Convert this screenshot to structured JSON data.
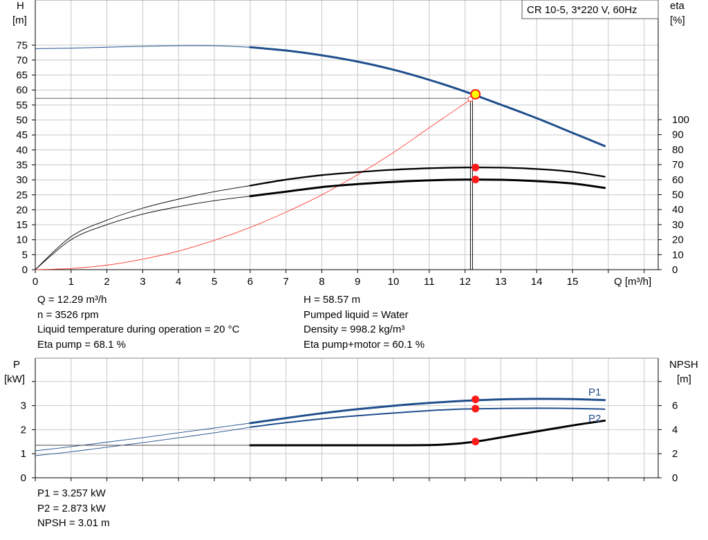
{
  "chart_data": [
    {
      "type": "line",
      "title_box": "CR 10-5, 3*220 V, 60Hz",
      "y_left_label": [
        "H",
        "[m]"
      ],
      "y_right_label": [
        "eta",
        "[%]"
      ],
      "x_label": "Q [m³/h]",
      "x_ticks": [
        0,
        1,
        2,
        3,
        4,
        5,
        6,
        7,
        8,
        9,
        10,
        11,
        12,
        13,
        14,
        15
      ],
      "y_left_ticks": [
        0,
        5,
        10,
        15,
        20,
        25,
        30,
        35,
        40,
        45,
        50,
        55,
        60,
        65,
        70,
        75
      ],
      "y_right_ticks": [
        0,
        10,
        20,
        30,
        40,
        50,
        60,
        70,
        80,
        90,
        100
      ],
      "xlim": [
        0,
        17
      ],
      "ylim_left": [
        0,
        80
      ],
      "ylim_right": [
        0,
        100
      ],
      "grid": true,
      "series": [
        {
          "role": "head",
          "axis": "left",
          "color": "#1f4e8c",
          "x": [
            0,
            1,
            2,
            3,
            4,
            5,
            6,
            7,
            8,
            9,
            10,
            11,
            12,
            13,
            14,
            15,
            15.9
          ],
          "y": [
            73.8,
            74,
            74.3,
            74.6,
            74.8,
            74.8,
            74.3,
            73.2,
            71.6,
            69.5,
            66.8,
            63.4,
            59.5,
            55.1,
            50.6,
            45.7,
            41.3
          ]
        },
        {
          "role": "eta pump",
          "axis": "right",
          "color": "#000000",
          "x": [
            0,
            1,
            2,
            3,
            4,
            5,
            6,
            7,
            8,
            9,
            10,
            11,
            12,
            13,
            14,
            15,
            15.9
          ],
          "y": [
            0,
            22,
            33,
            41,
            47,
            52,
            56,
            60,
            63,
            65,
            66.6,
            67.6,
            68.1,
            68,
            67.1,
            65.2,
            62
          ]
        },
        {
          "role": "eta pump+motor",
          "axis": "right",
          "color": "#000000",
          "x": [
            0,
            1,
            2,
            3,
            4,
            5,
            6,
            7,
            8,
            9,
            10,
            11,
            12,
            13,
            14,
            15,
            15.9
          ],
          "y": [
            0,
            20,
            30,
            37,
            42,
            46,
            49,
            52,
            55,
            57,
            58.5,
            59.5,
            60,
            59.9,
            59,
            57.4,
            54.5
          ]
        },
        {
          "role": "system curve",
          "axis": "left",
          "color": "#ff3b30",
          "x": [
            0,
            1,
            2,
            3,
            4,
            5,
            6,
            7,
            8,
            9,
            10,
            11,
            12.15
          ],
          "y": [
            0,
            0.4,
            1.5,
            3.5,
            6.2,
            9.8,
            14.1,
            19.2,
            25,
            31.7,
            39.1,
            47.4,
            56.8
          ]
        }
      ],
      "duty_point": {
        "q": 12.29,
        "h": 58.57,
        "eta_pump": 68.1,
        "eta_total": 60.1
      }
    },
    {
      "type": "line",
      "y_left_label": [
        "P",
        "[kW]"
      ],
      "y_right_label": [
        "NPSH",
        "[m]"
      ],
      "y_left_ticks": [
        0,
        1,
        2,
        3
      ],
      "y_right_ticks": [
        0,
        2,
        4,
        6
      ],
      "ylim_left": [
        0,
        4
      ],
      "ylim_right": [
        0,
        8
      ],
      "series": [
        {
          "name": "P1",
          "axis": "left",
          "color": "#1f4e8c",
          "x": [
            0,
            1,
            2,
            3,
            4,
            5,
            6,
            7,
            8,
            9,
            10,
            11,
            12,
            13,
            14,
            15,
            15.9
          ],
          "y": [
            1.12,
            1.29,
            1.48,
            1.67,
            1.87,
            2.07,
            2.27,
            2.48,
            2.68,
            2.85,
            2.99,
            3.11,
            3.2,
            3.26,
            3.28,
            3.27,
            3.23
          ]
        },
        {
          "name": "P2",
          "axis": "left",
          "color": "#1f4e8c",
          "x": [
            0,
            1,
            2,
            3,
            4,
            5,
            6,
            7,
            8,
            9,
            10,
            11,
            12,
            13,
            14,
            15,
            15.9
          ],
          "y": [
            0.92,
            1.08,
            1.27,
            1.46,
            1.66,
            1.87,
            2.1,
            2.29,
            2.45,
            2.58,
            2.69,
            2.79,
            2.86,
            2.88,
            2.89,
            2.88,
            2.85
          ]
        },
        {
          "name": "NPSH",
          "axis": "right",
          "color": "#000000",
          "x": [
            0,
            1,
            2,
            3,
            4,
            5,
            6,
            7,
            8,
            9,
            10,
            11,
            11.5,
            12,
            12.5,
            13,
            14,
            15,
            15.9
          ],
          "y": [
            2.7,
            2.7,
            2.7,
            2.7,
            2.7,
            2.7,
            2.7,
            2.7,
            2.7,
            2.7,
            2.7,
            2.72,
            2.78,
            2.9,
            3.1,
            3.35,
            3.85,
            4.35,
            4.75
          ]
        }
      ],
      "duty_point": {
        "p1": 3.257,
        "p2": 2.873,
        "npsh": 3.01
      }
    }
  ],
  "info_top_left": [
    "Q = 12.29 m³/h",
    "n = 3526 rpm",
    "Liquid temperature during operation = 20 °C",
    "Eta pump = 68.1 %"
  ],
  "info_top_right": [
    "H = 58.57 m",
    "Pumped liquid = Water",
    "Density = 998.2 kg/m³",
    "Eta pump+motor = 60.1 %"
  ],
  "info_bottom": [
    "P1 = 3.257 kW",
    "P2 = 2.873 kW",
    "NPSH = 3.01 m"
  ],
  "colors": {
    "grid": "#c8c8c8",
    "head": "#1f4e8c",
    "power": "#1f4e8c",
    "system": "#ff3b30",
    "point": "#ff1a1a",
    "duty_fill": "#ffff00"
  }
}
